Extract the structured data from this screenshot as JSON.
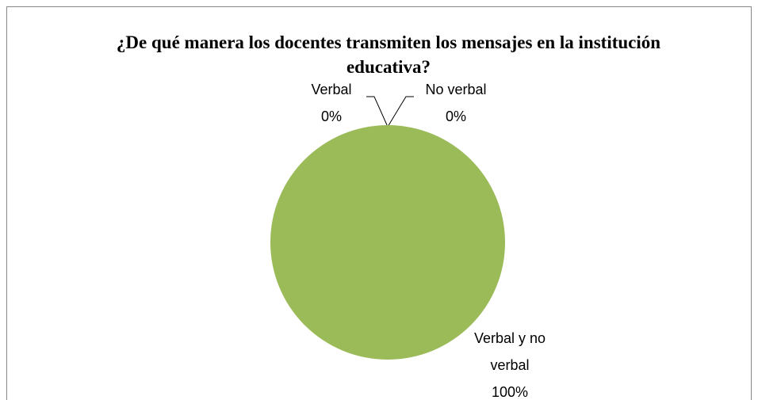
{
  "chart_data": {
    "type": "pie",
    "title": "¿De qué manera los docentes transmiten los mensajes en la institución educativa?",
    "categories": [
      "Verbal",
      "No verbal",
      "Verbal y no verbal"
    ],
    "values": [
      0,
      0,
      100
    ],
    "value_labels": [
      "0%",
      "0%",
      "100%"
    ],
    "colors": [
      "#4f81bd",
      "#c0504d",
      "#9bbb59"
    ]
  }
}
